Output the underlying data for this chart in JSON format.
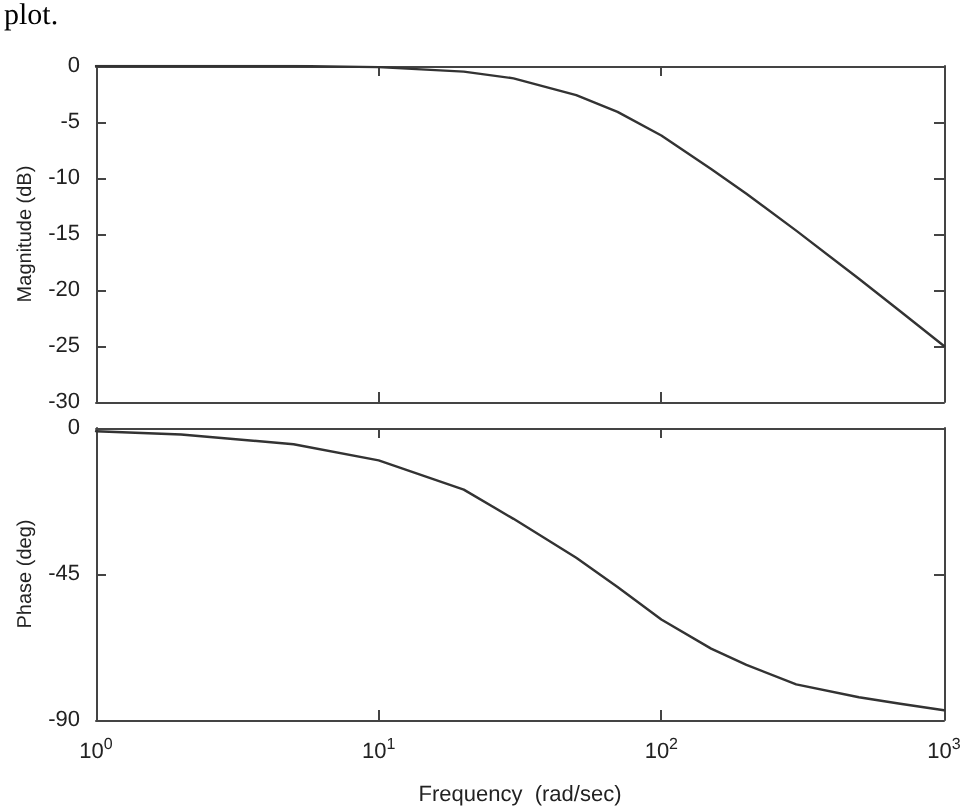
{
  "chart_data": [
    {
      "type": "line",
      "ylabel": "Magnitude (dB)",
      "annotations": [
        "plot."
      ],
      "tick_labels": "y",
      "x": [
        1,
        2,
        5,
        10,
        20,
        30,
        50,
        70,
        100,
        150,
        200,
        300,
        500,
        700,
        1000
      ],
      "series": [
        {
          "color": "#333333",
          "values": [
            0,
            0,
            0,
            -0.1,
            -0.5,
            -1.1,
            -2.6,
            -4.1,
            -6.2,
            -9.2,
            -11.4,
            -14.7,
            -19.0,
            -21.9,
            -25.0
          ]
        }
      ],
      "log": "x",
      "xlim": [
        1,
        1000
      ],
      "ylim": [
        -30,
        0
      ],
      "yticks": [
        -30,
        -25,
        -20,
        -15,
        -10,
        -5,
        0
      ],
      "xticks": [
        {
          "value": 1,
          "label": null
        },
        {
          "value": 10,
          "label": null
        },
        {
          "value": 100,
          "label": null
        },
        {
          "value": 1000,
          "label": null
        }
      ]
    },
    {
      "type": "line",
      "ylabel": "Phase (deg)",
      "xlabel": "Frequency  (rad/sec)",
      "x": [
        1,
        2,
        5,
        10,
        20,
        30,
        50,
        70,
        100,
        150,
        200,
        300,
        500,
        700,
        1000
      ],
      "series": [
        {
          "color": "#333333",
          "values": [
            -1,
            -2,
            -5,
            -10,
            -19,
            -28,
            -40,
            -49,
            -59,
            -68,
            -73,
            -79,
            -83,
            -85,
            -87
          ]
        }
      ],
      "log": "x",
      "xlim": [
        1,
        1000
      ],
      "ylim": [
        -90,
        0
      ],
      "yticks": [
        -90,
        -45,
        0
      ],
      "xticks": [
        {
          "value": 1,
          "label": "10$^{0}$"
        },
        {
          "value": 10,
          "label": "10$^{1}$"
        },
        {
          "value": 100,
          "label": "10$^{2}$"
        },
        {
          "value": 1000,
          "label": "10$^{3}$"
        }
      ]
    }
  ]
}
